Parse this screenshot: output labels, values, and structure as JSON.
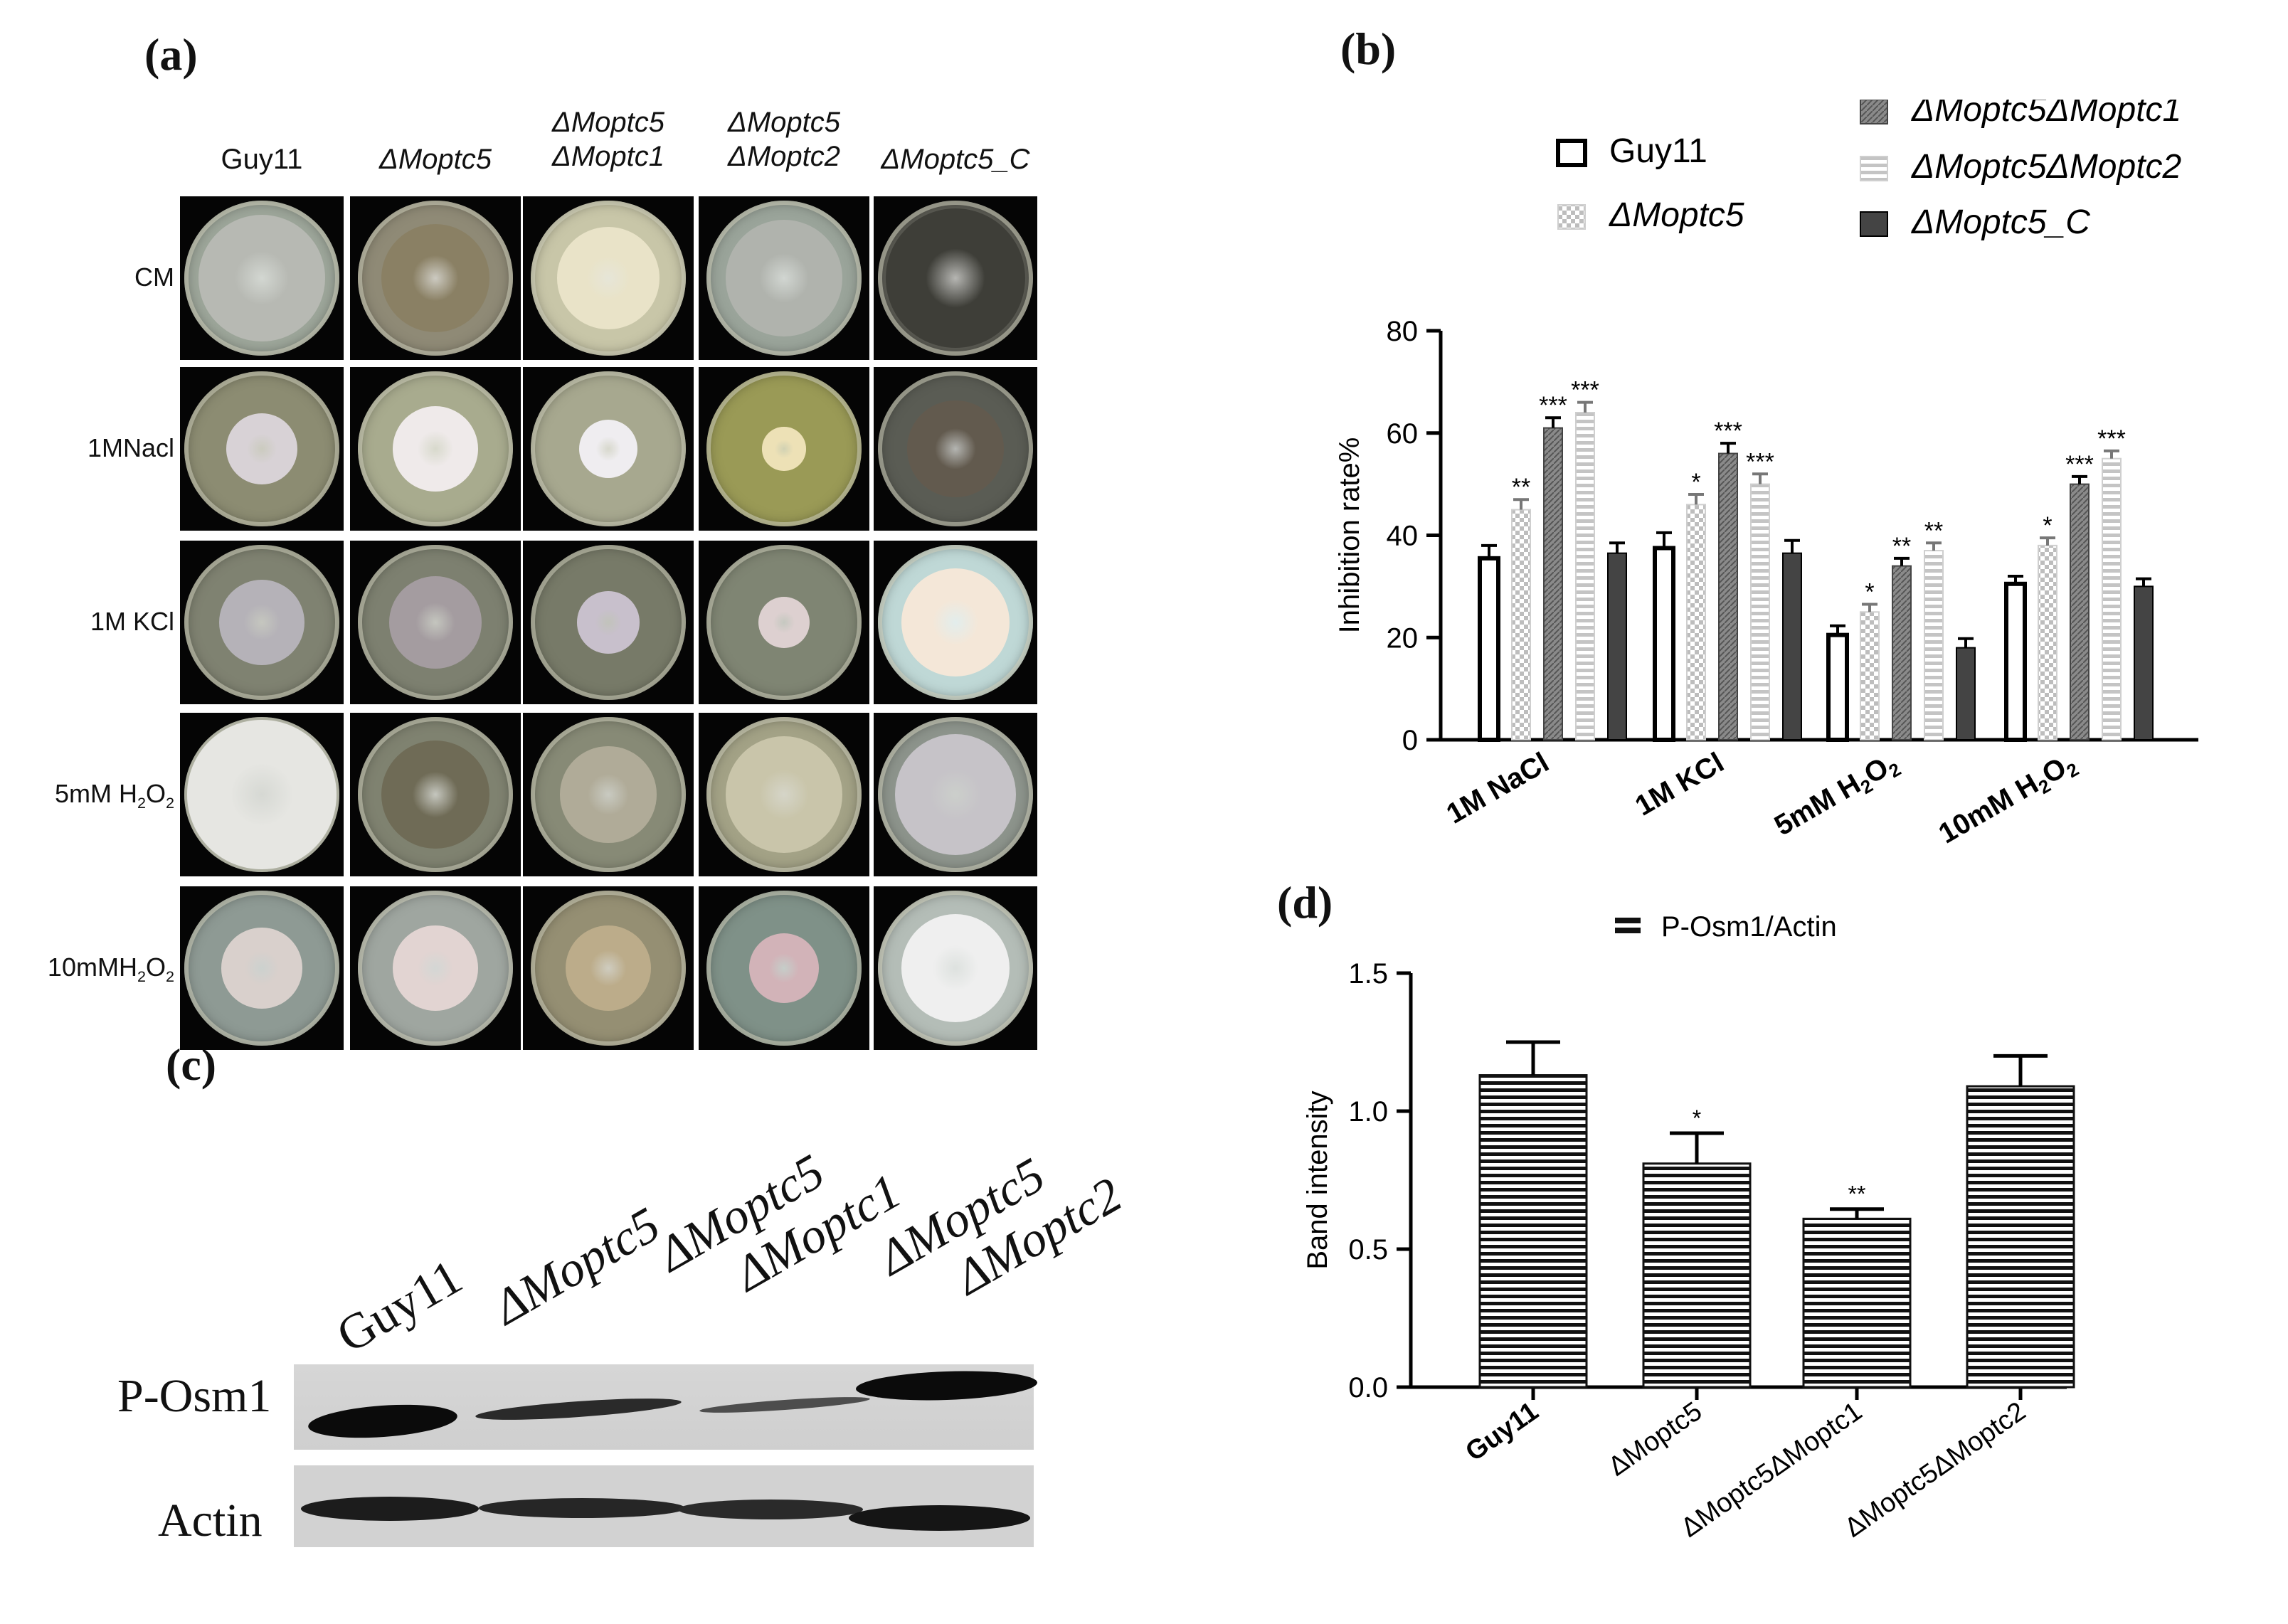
{
  "panels": {
    "a": "(a)",
    "b": "(b)",
    "c": "(c)",
    "d": "(d)"
  },
  "panel_a": {
    "column_headers": [
      [
        "Guy11"
      ],
      [
        "ΔMoptc5"
      ],
      [
        "ΔMoptc5",
        "ΔMoptc1"
      ],
      [
        "ΔMoptc5",
        "ΔMoptc2"
      ],
      [
        "ΔMoptc5_C"
      ]
    ],
    "row_labels": [
      "CM",
      "1MNacl",
      "1M KCl",
      "5mM H2O2",
      "10mMH2O2"
    ]
  },
  "panel_c": {
    "lane_labels": [
      [
        "Guy11"
      ],
      [
        "ΔMoptc5"
      ],
      [
        "ΔMoptc5",
        "ΔMoptc1"
      ],
      [
        "ΔMoptc5",
        "ΔMoptc2"
      ]
    ],
    "row_labels": [
      "P-Osm1",
      "Actin"
    ]
  },
  "chart_data": [
    {
      "panel": "b",
      "type": "bar",
      "ylabel": "Inhibition rate%",
      "ylim": [
        0,
        80
      ],
      "yticks": [
        0,
        20,
        40,
        60,
        80
      ],
      "categories": [
        "1M NaCl",
        "1M KCl",
        "5mM H2O2",
        "10mM H2O2"
      ],
      "legend_position": "top",
      "series": [
        {
          "name": "Guy11",
          "pattern": "open",
          "values": [
            35.5,
            37.5,
            20.5,
            30.5
          ],
          "errors": [
            2.5,
            3.0,
            1.8,
            1.5
          ],
          "sig": [
            "",
            "",
            "",
            ""
          ]
        },
        {
          "name": "ΔMoptc5",
          "pattern": "checker",
          "values": [
            45,
            46,
            25,
            38
          ],
          "errors": [
            2,
            2,
            1.5,
            1.5
          ],
          "sig": [
            "**",
            "*",
            "*",
            "*"
          ]
        },
        {
          "name": "ΔMoptc5ΔMoptc1",
          "pattern": "dense",
          "values": [
            61,
            56,
            34,
            50
          ],
          "errors": [
            2,
            2,
            1.5,
            1.5
          ],
          "sig": [
            "***",
            "***",
            "**",
            "***"
          ]
        },
        {
          "name": "ΔMoptc5ΔMoptc2",
          "pattern": "lines",
          "values": [
            64,
            50,
            37,
            55
          ],
          "errors": [
            2,
            2,
            1.5,
            1.5
          ],
          "sig": [
            "***",
            "***",
            "**",
            "***"
          ]
        },
        {
          "name": "ΔMoptc5_C",
          "pattern": "solid",
          "values": [
            36.5,
            36.5,
            18,
            30
          ],
          "errors": [
            2.0,
            2.5,
            1.8,
            1.5
          ],
          "sig": [
            "",
            "",
            "",
            ""
          ]
        }
      ]
    },
    {
      "panel": "d",
      "type": "bar",
      "ylabel": "Band intensity",
      "ylim": [
        0,
        1.5
      ],
      "yticks": [
        "0.0",
        "0.5",
        "1.0",
        "1.5"
      ],
      "legend": "P-Osm1/Actin",
      "legend_position": "top",
      "categories": [
        "Guy11",
        "ΔMoptc5",
        "ΔMoptc5ΔMoptc1",
        "ΔMoptc5ΔMoptc2"
      ],
      "values": [
        1.13,
        0.81,
        0.61,
        1.09
      ],
      "errors": [
        0.12,
        0.11,
        0.035,
        0.11
      ],
      "sig": [
        "",
        "*",
        "**",
        ""
      ]
    }
  ]
}
